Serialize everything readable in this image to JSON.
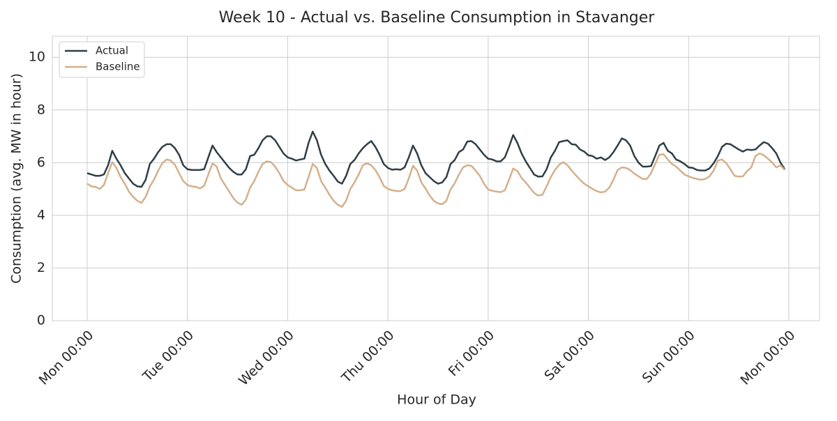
{
  "chart_data": {
    "type": "line",
    "title": "Week 10 - Actual vs. Baseline Consumption in Stavanger",
    "xlabel": "Hour of Day",
    "ylabel": "Consumption (avg. MW in hour)",
    "x": [
      0,
      1,
      2,
      3,
      4,
      5,
      6,
      7,
      8,
      9,
      10,
      11,
      12,
      13,
      14,
      15,
      16,
      17,
      18,
      19,
      20,
      21,
      22,
      23,
      24,
      25,
      26,
      27,
      28,
      29,
      30,
      31,
      32,
      33,
      34,
      35,
      36,
      37,
      38,
      39,
      40,
      41,
      42,
      43,
      44,
      45,
      46,
      47,
      48,
      49,
      50,
      51,
      52,
      53,
      54,
      55,
      56,
      57,
      58,
      59,
      60,
      61,
      62,
      63,
      64,
      65,
      66,
      67,
      68,
      69,
      70,
      71,
      72,
      73,
      74,
      75,
      76,
      77,
      78,
      79,
      80,
      81,
      82,
      83,
      84,
      85,
      86,
      87,
      88,
      89,
      90,
      91,
      92,
      93,
      94,
      95,
      96,
      97,
      98,
      99,
      100,
      101,
      102,
      103,
      104,
      105,
      106,
      107,
      108,
      109,
      110,
      111,
      112,
      113,
      114,
      115,
      116,
      117,
      118,
      119,
      120,
      121,
      122,
      123,
      124,
      125,
      126,
      127,
      128,
      129,
      130,
      131,
      132,
      133,
      134,
      135,
      136,
      137,
      138,
      139,
      140,
      141,
      142,
      143,
      144,
      145,
      146,
      147,
      148,
      149,
      150,
      151,
      152,
      153,
      154,
      155,
      156,
      157,
      158,
      159,
      160,
      161,
      162,
      163,
      164,
      165,
      166,
      167
    ],
    "series": [
      {
        "name": "Actual",
        "color": "#2f3e46",
        "values": [
          5.6,
          5.55,
          5.5,
          5.5,
          5.55,
          5.9,
          6.45,
          6.15,
          5.9,
          5.6,
          5.4,
          5.2,
          5.1,
          5.08,
          5.35,
          5.95,
          6.15,
          6.4,
          6.6,
          6.7,
          6.7,
          6.55,
          6.3,
          5.9,
          5.75,
          5.72,
          5.72,
          5.72,
          5.75,
          6.2,
          6.65,
          6.4,
          6.2,
          6.0,
          5.8,
          5.65,
          5.55,
          5.55,
          5.75,
          6.25,
          6.3,
          6.55,
          6.85,
          7.0,
          7.0,
          6.85,
          6.6,
          6.35,
          6.2,
          6.15,
          6.08,
          6.12,
          6.15,
          6.75,
          7.18,
          6.85,
          6.3,
          5.95,
          5.7,
          5.5,
          5.28,
          5.2,
          5.5,
          5.95,
          6.1,
          6.35,
          6.55,
          6.7,
          6.82,
          6.6,
          6.3,
          5.95,
          5.8,
          5.73,
          5.75,
          5.73,
          5.82,
          6.2,
          6.65,
          6.35,
          5.9,
          5.6,
          5.45,
          5.3,
          5.2,
          5.25,
          5.45,
          5.95,
          6.1,
          6.4,
          6.5,
          6.8,
          6.82,
          6.7,
          6.5,
          6.3,
          6.15,
          6.12,
          6.05,
          6.05,
          6.2,
          6.6,
          7.05,
          6.75,
          6.35,
          6.05,
          5.8,
          5.55,
          5.47,
          5.48,
          5.75,
          6.2,
          6.45,
          6.78,
          6.82,
          6.85,
          6.7,
          6.68,
          6.5,
          6.42,
          6.28,
          6.25,
          6.15,
          6.2,
          6.1,
          6.2,
          6.4,
          6.65,
          6.92,
          6.85,
          6.65,
          6.25,
          6.0,
          5.85,
          5.85,
          5.87,
          6.25,
          6.65,
          6.75,
          6.45,
          6.35,
          6.12,
          6.05,
          5.95,
          5.82,
          5.8,
          5.72,
          5.7,
          5.7,
          5.78,
          5.98,
          6.25,
          6.6,
          6.72,
          6.7,
          6.6,
          6.5,
          6.42,
          6.5,
          6.48,
          6.5,
          6.65,
          6.78,
          6.72,
          6.55,
          6.35,
          6.0,
          5.75
        ]
      },
      {
        "name": "Baseline",
        "color": "#d4b08c",
        "values": [
          5.2,
          5.1,
          5.08,
          5.0,
          5.15,
          5.6,
          6.02,
          5.8,
          5.45,
          5.2,
          4.9,
          4.7,
          4.55,
          4.47,
          4.7,
          5.1,
          5.35,
          5.7,
          5.98,
          6.12,
          6.08,
          5.92,
          5.6,
          5.3,
          5.15,
          5.1,
          5.08,
          5.02,
          5.12,
          5.55,
          5.97,
          5.85,
          5.4,
          5.15,
          4.9,
          4.65,
          4.48,
          4.4,
          4.6,
          5.05,
          5.3,
          5.65,
          5.95,
          6.05,
          6.02,
          5.85,
          5.6,
          5.3,
          5.15,
          5.05,
          4.95,
          4.95,
          4.98,
          5.45,
          5.95,
          5.8,
          5.3,
          5.05,
          4.78,
          4.55,
          4.4,
          4.32,
          4.55,
          5.0,
          5.25,
          5.55,
          5.9,
          5.98,
          5.9,
          5.72,
          5.45,
          5.12,
          5.0,
          4.95,
          4.92,
          4.92,
          5.0,
          5.4,
          5.88,
          5.7,
          5.25,
          5.02,
          4.75,
          4.55,
          4.45,
          4.42,
          4.55,
          4.98,
          5.22,
          5.55,
          5.82,
          5.9,
          5.88,
          5.7,
          5.5,
          5.2,
          4.98,
          4.93,
          4.9,
          4.88,
          4.95,
          5.35,
          5.78,
          5.68,
          5.42,
          5.25,
          5.05,
          4.85,
          4.75,
          4.78,
          5.1,
          5.45,
          5.72,
          5.92,
          6.02,
          5.9,
          5.7,
          5.52,
          5.35,
          5.2,
          5.1,
          5.0,
          4.92,
          4.87,
          4.9,
          5.05,
          5.35,
          5.72,
          5.82,
          5.8,
          5.72,
          5.58,
          5.48,
          5.38,
          5.38,
          5.6,
          5.95,
          6.3,
          6.32,
          6.12,
          5.95,
          5.85,
          5.7,
          5.55,
          5.48,
          5.42,
          5.38,
          5.35,
          5.38,
          5.48,
          5.7,
          6.08,
          6.12,
          5.98,
          5.75,
          5.5,
          5.47,
          5.48,
          5.68,
          5.82,
          6.25,
          6.35,
          6.28,
          6.15,
          6.0,
          5.82,
          5.9,
          5.72
        ]
      }
    ],
    "xlim": [
      -8.35,
      175.35
    ],
    "xticks": [
      {
        "value": 0,
        "label": "Mon 00:00"
      },
      {
        "value": 24,
        "label": "Tue 00:00"
      },
      {
        "value": 48,
        "label": "Wed 00:00"
      },
      {
        "value": 72,
        "label": "Thu 00:00"
      },
      {
        "value": 96,
        "label": "Fri 00:00"
      },
      {
        "value": 120,
        "label": "Sat 00:00"
      },
      {
        "value": 144,
        "label": "Sun 00:00"
      },
      {
        "value": 168,
        "label": "Mon 00:00"
      }
    ],
    "ylim": [
      0,
      10.8
    ],
    "yticks": [
      0,
      2,
      4,
      6,
      8,
      10
    ],
    "grid": true,
    "legend": "upper left"
  }
}
